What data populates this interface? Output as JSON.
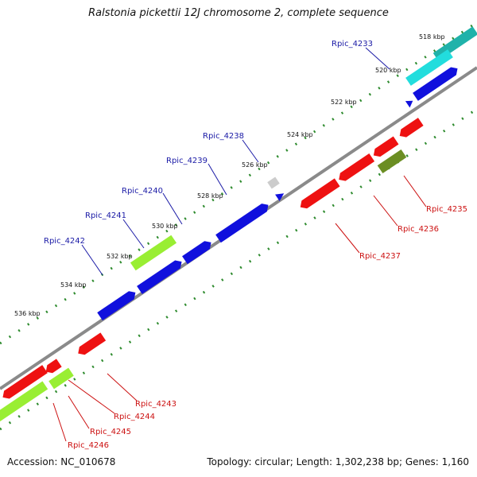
{
  "title": "Ralstonia pickettii 12J chromosome 2, complete sequence",
  "footer": {
    "accession": "Accession: NC_010678",
    "info": "Topology: circular; Length: 1,302,238 bp; Genes: 1,160"
  },
  "colors": {
    "backbone": "#8a8a8a",
    "tick": "#2e8b2e",
    "label_forward": "#1a1aa6",
    "label_reverse": "#cc1111",
    "cds_blue": "#1010dd",
    "cds_cyan": "#22dddd",
    "cds_teal": "#20b2aa",
    "cds_red": "#ee1111",
    "cds_lime": "#99ee33",
    "cds_olive": "#6b8e23",
    "cds_grey": "#cccccc"
  },
  "map": {
    "ruler_labels": [
      "518 kbp",
      "520 kbp",
      "522 kbp",
      "524 kbp",
      "526 kbp",
      "528 kbp",
      "530 kbp",
      "532 kbp",
      "534 kbp",
      "536 kbp"
    ],
    "forward_labels": [
      "Rpic_4233",
      "Rpic_4238",
      "Rpic_4239",
      "Rpic_4240",
      "Rpic_4241",
      "Rpic_4242"
    ],
    "reverse_labels": [
      "Rpic_4235",
      "Rpic_4236",
      "Rpic_4237",
      "Rpic_4243",
      "Rpic_4244",
      "Rpic_4245",
      "Rpic_4246"
    ]
  }
}
